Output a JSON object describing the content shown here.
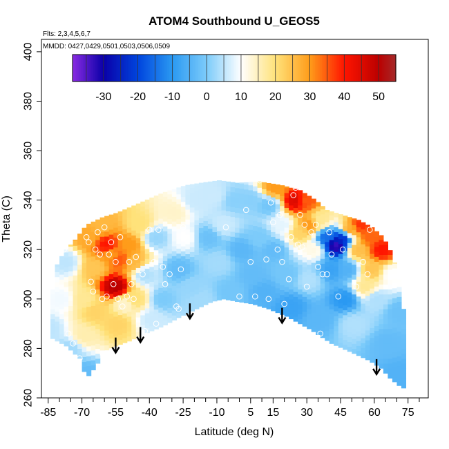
{
  "chart_data": {
    "type": "heatmap",
    "title": "ATOM4 Southbound U_GEOS5",
    "annotations": [
      "Flts: 2,3,4,5,6,7",
      "MMDD: 0427,0429,0501,0503,0506,0509"
    ],
    "xlabel": "Latitude (deg N)",
    "ylabel": "Theta (C)",
    "xlim": [
      -88,
      84
    ],
    "ylim": [
      260,
      405
    ],
    "x_ticks": [
      -85,
      -70,
      -55,
      -40,
      -25,
      -10,
      5,
      15,
      30,
      45,
      60,
      75
    ],
    "x_ticks_minor": [
      -80,
      -75,
      -65,
      -60,
      -50,
      -45,
      -35,
      -30,
      -20,
      -15,
      -5,
      0,
      10,
      20,
      25,
      35,
      40,
      50,
      55,
      65,
      70,
      80
    ],
    "y_ticks": [
      260,
      280,
      300,
      320,
      340,
      360,
      380,
      400
    ],
    "grid": false,
    "colorbar": {
      "min": -39,
      "max": 55,
      "ticks": [
        -30,
        -20,
        -10,
        0,
        10,
        20,
        30,
        40,
        50
      ],
      "stops": [
        {
          "v": -39,
          "c": "#8a2be2"
        },
        {
          "v": -30,
          "c": "#0a00a8"
        },
        {
          "v": -20,
          "c": "#0044dd"
        },
        {
          "v": -10,
          "c": "#2a99f2"
        },
        {
          "v": 0,
          "c": "#7ccbfa"
        },
        {
          "v": 10,
          "c": "#ffffff"
        },
        {
          "v": 20,
          "c": "#ffe27a"
        },
        {
          "v": 30,
          "c": "#ff9c1a"
        },
        {
          "v": 40,
          "c": "#ff1500"
        },
        {
          "v": 50,
          "c": "#bb0000"
        },
        {
          "v": 55,
          "c": "#a52a2a"
        }
      ]
    },
    "domain_top": [
      [
        -86,
        287
      ],
      [
        -84,
        305
      ],
      [
        -82,
        314
      ],
      [
        -79,
        319
      ],
      [
        -74,
        324
      ],
      [
        -69,
        330
      ],
      [
        -62,
        333
      ],
      [
        -55,
        335
      ],
      [
        -45,
        339
      ],
      [
        -35,
        343
      ],
      [
        -25,
        346
      ],
      [
        -18,
        347
      ],
      [
        -10,
        348
      ],
      [
        -2,
        347
      ],
      [
        8,
        347.5
      ],
      [
        18,
        346
      ],
      [
        26,
        344
      ],
      [
        33,
        340
      ],
      [
        38,
        336
      ],
      [
        45,
        334
      ],
      [
        52,
        332
      ],
      [
        58,
        329
      ],
      [
        63,
        325
      ],
      [
        67,
        318
      ],
      [
        70,
        308
      ],
      [
        72,
        296
      ],
      [
        72,
        277
      ],
      [
        72,
        264
      ]
    ],
    "domain_bottom": [
      [
        72,
        264
      ],
      [
        70,
        265
      ],
      [
        66,
        268
      ],
      [
        62,
        272
      ],
      [
        57,
        275
      ],
      [
        50,
        278
      ],
      [
        40,
        282
      ],
      [
        30,
        288
      ],
      [
        20,
        293
      ],
      [
        12,
        296
      ],
      [
        5,
        298
      ],
      [
        -2,
        299
      ],
      [
        -8,
        300
      ],
      [
        -13,
        299
      ],
      [
        -20,
        296
      ],
      [
        -27,
        293
      ],
      [
        -35,
        289
      ],
      [
        -43,
        286
      ],
      [
        -50,
        283
      ],
      [
        -56,
        281
      ],
      [
        -61,
        279
      ],
      [
        -64,
        274
      ],
      [
        -67,
        270
      ],
      [
        -69,
        268
      ],
      [
        -72,
        276
      ],
      [
        -78,
        281
      ],
      [
        -84,
        284
      ],
      [
        -86,
        287
      ]
    ],
    "values": [
      {
        "x": -86,
        "y": 288,
        "v": 5
      },
      {
        "x": -80,
        "y": 300,
        "v": 9
      },
      {
        "x": -78,
        "y": 315,
        "v": 5
      },
      {
        "x": -76,
        "y": 280,
        "v": 3
      },
      {
        "x": -70,
        "y": 270,
        "v": -3
      },
      {
        "x": -70,
        "y": 285,
        "v": 16
      },
      {
        "x": -70,
        "y": 300,
        "v": 18
      },
      {
        "x": -68,
        "y": 325,
        "v": 28
      },
      {
        "x": -65,
        "y": 313,
        "v": 24
      },
      {
        "x": -65,
        "y": 295,
        "v": 22
      },
      {
        "x": -62,
        "y": 330,
        "v": 26
      },
      {
        "x": -60,
        "y": 322,
        "v": 40
      },
      {
        "x": -58,
        "y": 318,
        "v": 30
      },
      {
        "x": -56,
        "y": 305,
        "v": 50
      },
      {
        "x": -55,
        "y": 290,
        "v": 22
      },
      {
        "x": -54,
        "y": 316,
        "v": 35
      },
      {
        "x": -52,
        "y": 298,
        "v": 14
      },
      {
        "x": -50,
        "y": 322,
        "v": 30
      },
      {
        "x": -48,
        "y": 315,
        "v": 26
      },
      {
        "x": -47,
        "y": 300,
        "v": 20
      },
      {
        "x": -45,
        "y": 330,
        "v": 20
      },
      {
        "x": -43,
        "y": 310,
        "v": 4
      },
      {
        "x": -40,
        "y": 292,
        "v": 6
      },
      {
        "x": -38,
        "y": 325,
        "v": 2
      },
      {
        "x": -35,
        "y": 300,
        "v": 0
      },
      {
        "x": -30,
        "y": 335,
        "v": 14
      },
      {
        "x": -28,
        "y": 312,
        "v": -3
      },
      {
        "x": -25,
        "y": 325,
        "v": 10
      },
      {
        "x": -22,
        "y": 305,
        "v": 2
      },
      {
        "x": -20,
        "y": 340,
        "v": 6
      },
      {
        "x": -18,
        "y": 300,
        "v": 3
      },
      {
        "x": -15,
        "y": 325,
        "v": -2
      },
      {
        "x": -12,
        "y": 342,
        "v": 6
      },
      {
        "x": -10,
        "y": 315,
        "v": 3
      },
      {
        "x": -8,
        "y": 330,
        "v": 6
      },
      {
        "x": -5,
        "y": 303,
        "v": -1
      },
      {
        "x": -3,
        "y": 340,
        "v": 1
      },
      {
        "x": 0,
        "y": 320,
        "v": -4
      },
      {
        "x": 4,
        "y": 340,
        "v": 1
      },
      {
        "x": 5,
        "y": 310,
        "v": -3
      },
      {
        "x": 8,
        "y": 325,
        "v": 0
      },
      {
        "x": 10,
        "y": 303,
        "v": -5
      },
      {
        "x": 12,
        "y": 338,
        "v": -1
      },
      {
        "x": 14,
        "y": 320,
        "v": -3
      },
      {
        "x": 15,
        "y": 345,
        "v": 30
      },
      {
        "x": 18,
        "y": 330,
        "v": 8
      },
      {
        "x": 20,
        "y": 310,
        "v": -1
      },
      {
        "x": 22,
        "y": 297,
        "v": -8
      },
      {
        "x": 24,
        "y": 340,
        "v": 45
      },
      {
        "x": 26,
        "y": 327,
        "v": 22
      },
      {
        "x": 28,
        "y": 340,
        "v": 35
      },
      {
        "x": 30,
        "y": 308,
        "v": 4
      },
      {
        "x": 30,
        "y": 330,
        "v": 30
      },
      {
        "x": 32,
        "y": 320,
        "v": 12
      },
      {
        "x": 35,
        "y": 292,
        "v": -4
      },
      {
        "x": 35,
        "y": 332,
        "v": 18
      },
      {
        "x": 38,
        "y": 325,
        "v": -15
      },
      {
        "x": 40,
        "y": 312,
        "v": -8
      },
      {
        "x": 42,
        "y": 322,
        "v": -33
      },
      {
        "x": 45,
        "y": 325,
        "v": -22
      },
      {
        "x": 46,
        "y": 300,
        "v": -10
      },
      {
        "x": 47,
        "y": 312,
        "v": -5
      },
      {
        "x": 48,
        "y": 328,
        "v": 28
      },
      {
        "x": 50,
        "y": 290,
        "v": 4
      },
      {
        "x": 52,
        "y": 320,
        "v": 25
      },
      {
        "x": 53,
        "y": 330,
        "v": 38
      },
      {
        "x": 55,
        "y": 305,
        "v": 18
      },
      {
        "x": 57,
        "y": 325,
        "v": 34
      },
      {
        "x": 58,
        "y": 312,
        "v": 24
      },
      {
        "x": 60,
        "y": 300,
        "v": 4
      },
      {
        "x": 62,
        "y": 320,
        "v": 40
      },
      {
        "x": 65,
        "y": 282,
        "v": -3
      },
      {
        "x": 67,
        "y": 310,
        "v": 10
      },
      {
        "x": 70,
        "y": 295,
        "v": -2
      },
      {
        "x": 70,
        "y": 270,
        "v": -5
      }
    ],
    "points": [
      [
        -86,
        287
      ],
      [
        -78,
        320
      ],
      [
        -76,
        286
      ],
      [
        -74,
        282
      ],
      [
        -71,
        276
      ],
      [
        -70,
        269
      ],
      [
        -68,
        325
      ],
      [
        -67,
        323
      ],
      [
        -66,
        307
      ],
      [
        -65,
        303
      ],
      [
        -64,
        320
      ],
      [
        -63,
        327
      ],
      [
        -62,
        318
      ],
      [
        -61,
        300
      ],
      [
        -60,
        329
      ],
      [
        -59,
        301
      ],
      [
        -58,
        318
      ],
      [
        -57,
        323
      ],
      [
        -56,
        306
      ],
      [
        -55,
        315
      ],
      [
        -54,
        300
      ],
      [
        -53,
        325
      ],
      [
        -52,
        297
      ],
      [
        -50,
        301
      ],
      [
        -49,
        315
      ],
      [
        -48,
        306
      ],
      [
        -47,
        300
      ],
      [
        -46,
        317
      ],
      [
        -43,
        310
      ],
      [
        -42,
        287
      ],
      [
        -40,
        328
      ],
      [
        -38,
        315
      ],
      [
        -37,
        290
      ],
      [
        -36,
        328
      ],
      [
        -34,
        313
      ],
      [
        -33,
        306
      ],
      [
        -31,
        310
      ],
      [
        -28,
        297
      ],
      [
        -27,
        296
      ],
      [
        -26,
        312
      ],
      [
        -25,
        329
      ],
      [
        -6,
        329
      ],
      [
        0,
        301
      ],
      [
        3,
        336
      ],
      [
        5,
        315
      ],
      [
        7,
        301
      ],
      [
        9,
        348
      ],
      [
        12,
        316
      ],
      [
        13,
        300
      ],
      [
        14,
        339
      ],
      [
        15,
        331
      ],
      [
        17,
        320
      ],
      [
        18,
        334
      ],
      [
        19,
        315
      ],
      [
        20,
        298
      ],
      [
        22,
        308
      ],
      [
        23,
        325
      ],
      [
        24,
        342
      ],
      [
        25,
        345
      ],
      [
        26,
        322
      ],
      [
        27,
        334
      ],
      [
        28,
        321
      ],
      [
        29,
        330
      ],
      [
        30,
        305
      ],
      [
        32,
        327
      ],
      [
        34,
        330
      ],
      [
        35,
        313
      ],
      [
        36,
        286
      ],
      [
        37,
        310
      ],
      [
        39,
        310
      ],
      [
        40,
        327
      ],
      [
        41,
        318
      ],
      [
        44,
        301
      ],
      [
        46,
        320
      ],
      [
        52,
        305
      ],
      [
        55,
        315
      ],
      [
        57,
        310
      ],
      [
        58,
        328
      ]
    ],
    "arrows": [
      -55,
      -44,
      -22,
      19,
      61
    ]
  }
}
